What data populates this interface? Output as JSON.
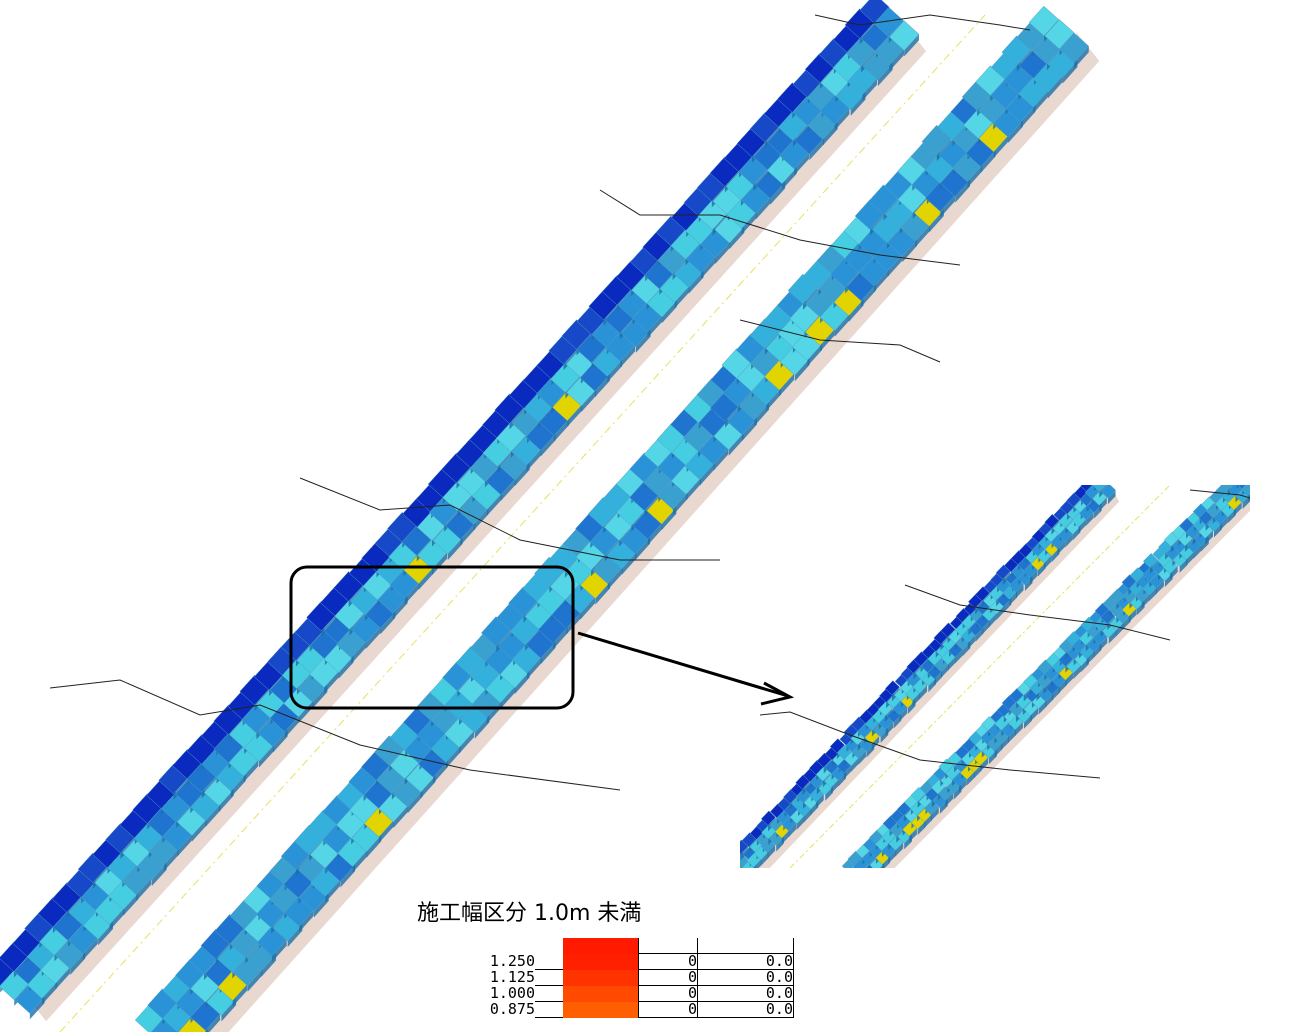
{
  "legend": {
    "title": "施工幅区分 1.0m 未満",
    "rows": [
      {
        "label": "",
        "color": "#ff1a00",
        "count": "",
        "area": ""
      },
      {
        "label": "1.250",
        "color": "#ff2000",
        "count": "0",
        "area": "0.0"
      },
      {
        "label": "1.125",
        "color": "#ff3300",
        "count": "0",
        "area": "0.0"
      },
      {
        "label": "1.000",
        "color": "#ff4a00",
        "count": "0",
        "area": "0.0"
      },
      {
        "label": "0.875",
        "color": "#ff5f00",
        "count": "0",
        "area": "0.0"
      }
    ]
  }
}
